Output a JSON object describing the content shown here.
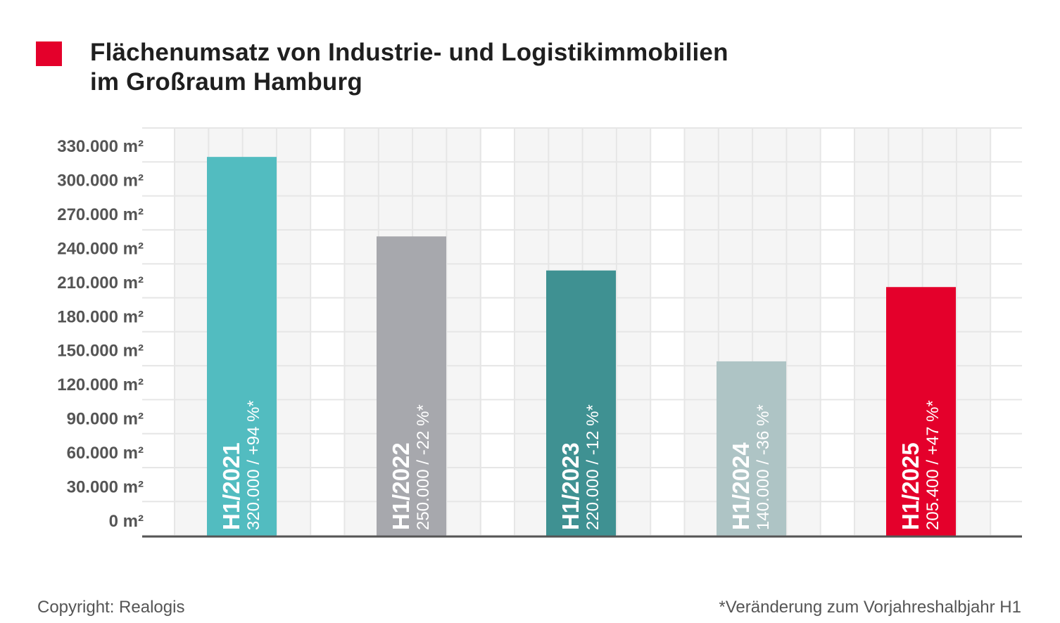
{
  "title": {
    "line1": "Flächenumsatz von Industrie- und Logistikimmobilien",
    "line2": "im Großraum Hamburg"
  },
  "footer": {
    "copyright": "Copyright: Realogis",
    "note": "*Veränderung zum Vorjahreshalbjahr H1"
  },
  "colors": {
    "accent": "#e4002b",
    "grid_bg": "#f5f5f5",
    "grid_line": "#e6e6e6",
    "axis": "#555555"
  },
  "chart_data": {
    "type": "bar",
    "ylim": [
      0,
      330000
    ],
    "ytick_values": [
      0,
      30000,
      60000,
      90000,
      120000,
      150000,
      180000,
      210000,
      240000,
      270000,
      300000,
      330000
    ],
    "yticks": [
      "0 m²",
      "30.000 m²",
      "60.000 m²",
      "90.000 m²",
      "120.000 m²",
      "150.000 m²",
      "180.000 m²",
      "210.000 m²",
      "240.000 m²",
      "270.000 m²",
      "300.000 m²",
      "330.000 m²"
    ],
    "grid": true,
    "bars": [
      {
        "category": "H1/2021",
        "value": 320000,
        "label": "320.000 / +94 %*",
        "color": "#52bcc0"
      },
      {
        "category": "H1/2022",
        "value": 250000,
        "label": "250.000 / -22 %*",
        "color": "#a7a8ad"
      },
      {
        "category": "H1/2023",
        "value": 220000,
        "label": "220.000 / -12 %*",
        "color": "#3f9192"
      },
      {
        "category": "H1/2024",
        "value": 140000,
        "label": "140.000 / -36 %*",
        "color": "#aec4c5"
      },
      {
        "category": "H1/2025",
        "value": 205400,
        "label": "205.400 / +47 %*",
        "color": "#e4002b"
      }
    ]
  }
}
